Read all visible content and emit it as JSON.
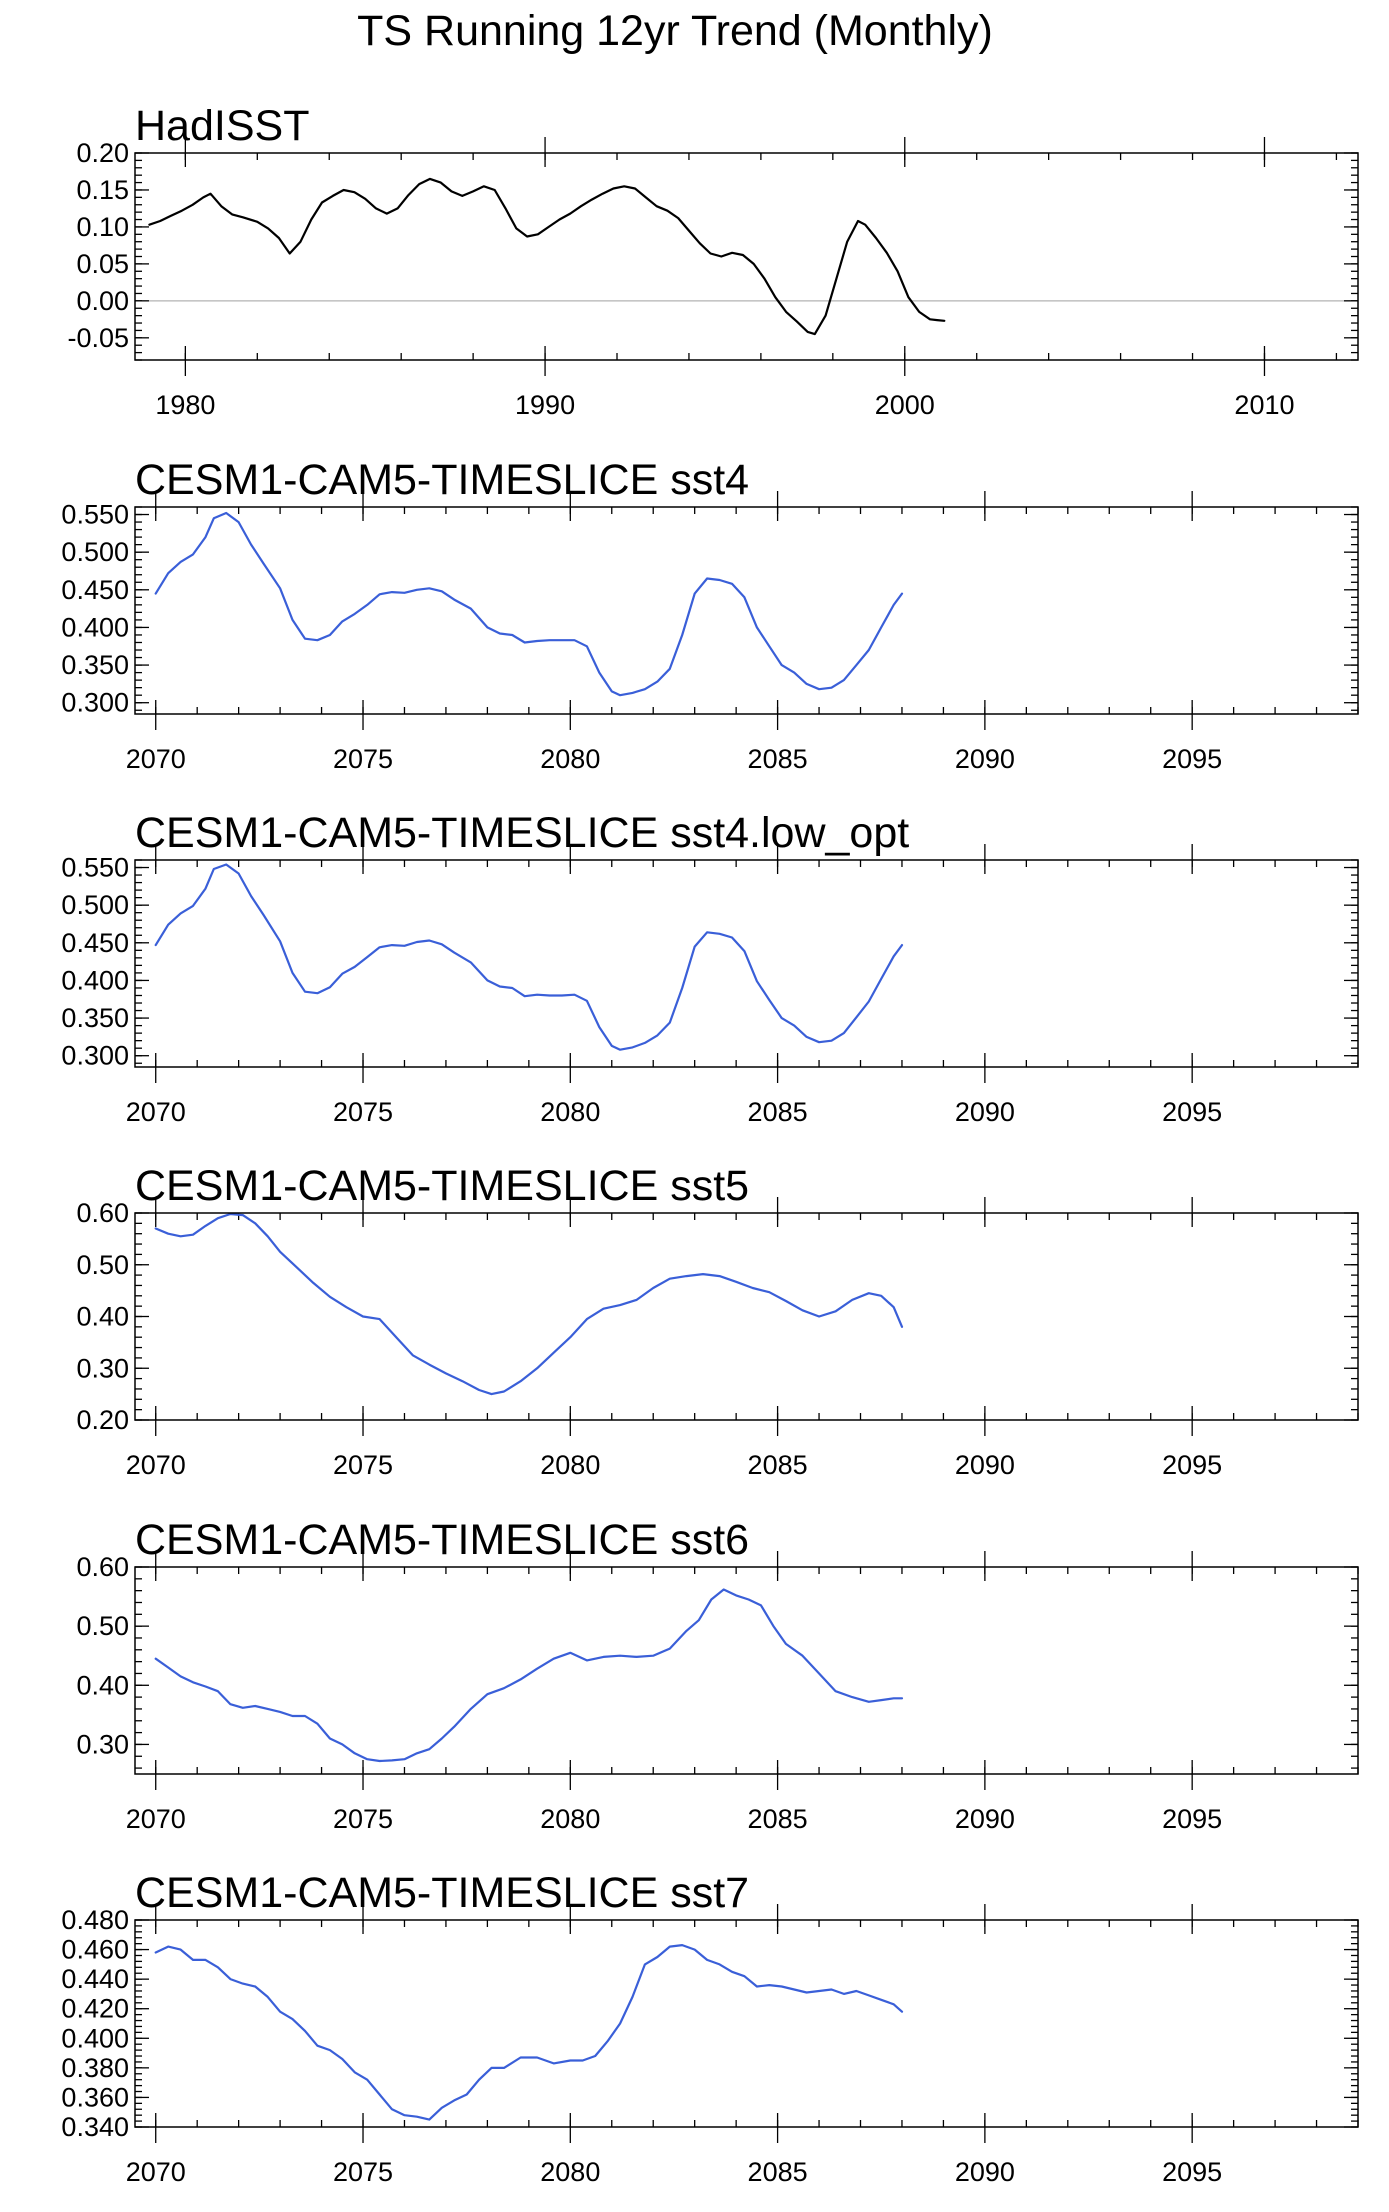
{
  "figure_title": "TS Running 12yr Trend (Monthly)",
  "chart_data": [
    {
      "type": "line",
      "title": "HadISST",
      "xlabel": "",
      "ylabel": "",
      "xlim": [
        1978.6,
        2012.6
      ],
      "ylim": [
        -0.08,
        0.2
      ],
      "yticks": [
        -0.05,
        0.0,
        0.05,
        0.1,
        0.15,
        0.2
      ],
      "ytick_labels": [
        "-0.05",
        "0.00",
        "0.05",
        "0.10",
        "0.15",
        "0.20"
      ],
      "xticks": [
        1980,
        1990,
        2000,
        2010
      ],
      "xtick_labels": [
        "1980",
        "1990",
        "2000",
        "2010"
      ],
      "zero_line": true,
      "series": [
        {
          "name": "HadISST",
          "color": "#000000",
          "x": [
            1979.0,
            1979.3,
            1979.6,
            1979.9,
            1980.2,
            1980.5,
            1980.7,
            1981.0,
            1981.3,
            1981.6,
            1982.0,
            1982.3,
            1982.6,
            1982.9,
            1983.2,
            1983.5,
            1983.8,
            1984.1,
            1984.4,
            1984.7,
            1985.0,
            1985.3,
            1985.6,
            1985.9,
            1986.2,
            1986.5,
            1986.8,
            1987.1,
            1987.4,
            1987.7,
            1988.0,
            1988.3,
            1988.6,
            1988.9,
            1989.2,
            1989.5,
            1989.8,
            1990.1,
            1990.4,
            1990.7,
            1991.0,
            1991.3,
            1991.6,
            1991.9,
            1992.2,
            1992.5,
            1992.8,
            1993.1,
            1993.4,
            1993.7,
            1994.0,
            1994.3,
            1994.6,
            1994.9,
            1995.2,
            1995.5,
            1995.8,
            1996.1,
            1996.4,
            1996.7,
            1997.0,
            1997.3,
            1997.5,
            1997.8,
            1998.1,
            1998.4,
            1998.7,
            1998.9,
            1999.2,
            1999.5,
            1999.8,
            2000.1,
            2000.4,
            2000.7,
            2000.9,
            2001.1
          ],
          "y": [
            0.103,
            0.108,
            0.115,
            0.122,
            0.13,
            0.14,
            0.145,
            0.128,
            0.117,
            0.113,
            0.107,
            0.098,
            0.085,
            0.064,
            0.08,
            0.11,
            0.133,
            0.142,
            0.15,
            0.147,
            0.138,
            0.125,
            0.118,
            0.125,
            0.143,
            0.158,
            0.165,
            0.16,
            0.148,
            0.142,
            0.148,
            0.155,
            0.15,
            0.125,
            0.098,
            0.087,
            0.09,
            0.1,
            0.11,
            0.118,
            0.128,
            0.137,
            0.145,
            0.152,
            0.155,
            0.152,
            0.14,
            0.128,
            0.122,
            0.112,
            0.095,
            0.078,
            0.064,
            0.06,
            0.065,
            0.062,
            0.05,
            0.03,
            0.005,
            -0.015,
            -0.028,
            -0.042,
            -0.045,
            -0.02,
            0.03,
            0.08,
            0.108,
            0.103,
            0.085,
            0.065,
            0.04,
            0.005,
            -0.015,
            -0.025,
            -0.026,
            -0.027
          ]
        }
      ]
    },
    {
      "type": "line",
      "title": "CESM1-CAM5-TIMESLICE sst4",
      "xlabel": "",
      "ylabel": "",
      "xlim": [
        2069.5,
        2099.0
      ],
      "ylim": [
        0.285,
        0.56
      ],
      "yticks": [
        0.3,
        0.35,
        0.4,
        0.45,
        0.5,
        0.55
      ],
      "ytick_labels": [
        "0.300",
        "0.350",
        "0.400",
        "0.450",
        "0.500",
        "0.550"
      ],
      "xticks": [
        2070,
        2075,
        2080,
        2085,
        2090,
        2095
      ],
      "xtick_labels": [
        "2070",
        "2075",
        "2080",
        "2085",
        "2090",
        "2095"
      ],
      "series": [
        {
          "name": "sst4",
          "color": "#3a5fd8",
          "x": [
            2070.0,
            2070.3,
            2070.6,
            2070.9,
            2071.2,
            2071.4,
            2071.7,
            2072.0,
            2072.3,
            2072.6,
            2073.0,
            2073.3,
            2073.6,
            2073.9,
            2074.2,
            2074.5,
            2074.8,
            2075.1,
            2075.4,
            2075.7,
            2076.0,
            2076.3,
            2076.6,
            2076.9,
            2077.2,
            2077.6,
            2078.0,
            2078.3,
            2078.6,
            2078.9,
            2079.2,
            2079.5,
            2079.8,
            2080.1,
            2080.4,
            2080.7,
            2081.0,
            2081.2,
            2081.5,
            2081.8,
            2082.1,
            2082.4,
            2082.7,
            2083.0,
            2083.3,
            2083.6,
            2083.9,
            2084.2,
            2084.5,
            2084.8,
            2085.1,
            2085.4,
            2085.7,
            2086.0,
            2086.3,
            2086.6,
            2086.9,
            2087.2,
            2087.5,
            2087.8,
            2088.0
          ],
          "y": [
            0.445,
            0.472,
            0.487,
            0.497,
            0.52,
            0.545,
            0.552,
            0.54,
            0.51,
            0.485,
            0.452,
            0.41,
            0.385,
            0.383,
            0.39,
            0.408,
            0.418,
            0.43,
            0.444,
            0.447,
            0.446,
            0.45,
            0.452,
            0.448,
            0.437,
            0.425,
            0.4,
            0.392,
            0.39,
            0.38,
            0.382,
            0.383,
            0.383,
            0.383,
            0.375,
            0.34,
            0.315,
            0.31,
            0.313,
            0.318,
            0.328,
            0.345,
            0.39,
            0.445,
            0.465,
            0.463,
            0.458,
            0.44,
            0.4,
            0.375,
            0.35,
            0.34,
            0.325,
            0.318,
            0.32,
            0.33,
            0.35,
            0.37,
            0.4,
            0.43,
            0.445
          ]
        }
      ]
    },
    {
      "type": "line",
      "title": "CESM1-CAM5-TIMESLICE sst4.low_opt",
      "xlabel": "",
      "ylabel": "",
      "xlim": [
        2069.5,
        2099.0
      ],
      "ylim": [
        0.285,
        0.56
      ],
      "yticks": [
        0.3,
        0.35,
        0.4,
        0.45,
        0.5,
        0.55
      ],
      "ytick_labels": [
        "0.300",
        "0.350",
        "0.400",
        "0.450",
        "0.500",
        "0.550"
      ],
      "xticks": [
        2070,
        2075,
        2080,
        2085,
        2090,
        2095
      ],
      "xtick_labels": [
        "2070",
        "2075",
        "2080",
        "2085",
        "2090",
        "2095"
      ],
      "series": [
        {
          "name": "sst4.low_opt",
          "color": "#3a5fd8",
          "x": [
            2070.0,
            2070.3,
            2070.6,
            2070.9,
            2071.2,
            2071.4,
            2071.7,
            2072.0,
            2072.3,
            2072.6,
            2073.0,
            2073.3,
            2073.6,
            2073.9,
            2074.2,
            2074.5,
            2074.8,
            2075.1,
            2075.4,
            2075.7,
            2076.0,
            2076.3,
            2076.6,
            2076.9,
            2077.2,
            2077.6,
            2078.0,
            2078.3,
            2078.6,
            2078.9,
            2079.2,
            2079.5,
            2079.8,
            2080.1,
            2080.4,
            2080.7,
            2081.0,
            2081.2,
            2081.5,
            2081.8,
            2082.1,
            2082.4,
            2082.7,
            2083.0,
            2083.3,
            2083.6,
            2083.9,
            2084.2,
            2084.5,
            2084.8,
            2085.1,
            2085.4,
            2085.7,
            2086.0,
            2086.3,
            2086.6,
            2086.9,
            2087.2,
            2087.5,
            2087.8,
            2088.0
          ],
          "y": [
            0.447,
            0.474,
            0.489,
            0.499,
            0.522,
            0.548,
            0.554,
            0.542,
            0.512,
            0.487,
            0.452,
            0.41,
            0.385,
            0.383,
            0.391,
            0.409,
            0.418,
            0.431,
            0.444,
            0.447,
            0.446,
            0.451,
            0.453,
            0.448,
            0.437,
            0.424,
            0.4,
            0.392,
            0.39,
            0.379,
            0.381,
            0.38,
            0.38,
            0.381,
            0.373,
            0.338,
            0.313,
            0.308,
            0.311,
            0.317,
            0.327,
            0.344,
            0.39,
            0.445,
            0.464,
            0.462,
            0.457,
            0.439,
            0.399,
            0.374,
            0.35,
            0.34,
            0.325,
            0.318,
            0.32,
            0.33,
            0.351,
            0.372,
            0.402,
            0.432,
            0.447
          ]
        }
      ]
    },
    {
      "type": "line",
      "title": "CESM1-CAM5-TIMESLICE sst5",
      "xlabel": "",
      "ylabel": "",
      "xlim": [
        2069.5,
        2099.0
      ],
      "ylim": [
        0.2,
        0.6
      ],
      "yticks": [
        0.2,
        0.3,
        0.4,
        0.5,
        0.6
      ],
      "ytick_labels": [
        "0.20",
        "0.30",
        "0.40",
        "0.50",
        "0.60"
      ],
      "xticks": [
        2070,
        2075,
        2080,
        2085,
        2090,
        2095
      ],
      "xtick_labels": [
        "2070",
        "2075",
        "2080",
        "2085",
        "2090",
        "2095"
      ],
      "series": [
        {
          "name": "sst5",
          "color": "#3a5fd8",
          "x": [
            2070.0,
            2070.3,
            2070.6,
            2070.9,
            2071.2,
            2071.5,
            2071.8,
            2072.1,
            2072.4,
            2072.7,
            2073.0,
            2073.4,
            2073.8,
            2074.2,
            2074.6,
            2075.0,
            2075.4,
            2075.8,
            2076.2,
            2076.6,
            2077.0,
            2077.4,
            2077.8,
            2078.1,
            2078.4,
            2078.8,
            2079.2,
            2079.6,
            2080.0,
            2080.4,
            2080.8,
            2081.2,
            2081.6,
            2082.0,
            2082.4,
            2082.8,
            2083.2,
            2083.6,
            2084.0,
            2084.4,
            2084.8,
            2085.2,
            2085.6,
            2086.0,
            2086.4,
            2086.8,
            2087.2,
            2087.5,
            2087.8,
            2088.0
          ],
          "y": [
            0.57,
            0.56,
            0.555,
            0.558,
            0.575,
            0.59,
            0.598,
            0.596,
            0.58,
            0.555,
            0.525,
            0.495,
            0.465,
            0.438,
            0.418,
            0.4,
            0.395,
            0.36,
            0.325,
            0.307,
            0.29,
            0.275,
            0.258,
            0.25,
            0.255,
            0.275,
            0.3,
            0.33,
            0.36,
            0.395,
            0.415,
            0.422,
            0.432,
            0.455,
            0.473,
            0.478,
            0.482,
            0.478,
            0.467,
            0.455,
            0.447,
            0.43,
            0.412,
            0.4,
            0.41,
            0.432,
            0.445,
            0.44,
            0.418,
            0.38
          ]
        }
      ]
    },
    {
      "type": "line",
      "title": "CESM1-CAM5-TIMESLICE sst6",
      "xlabel": "",
      "ylabel": "",
      "xlim": [
        2069.5,
        2099.0
      ],
      "ylim": [
        0.25,
        0.6
      ],
      "yticks": [
        0.3,
        0.4,
        0.5,
        0.6
      ],
      "ytick_labels": [
        "0.30",
        "0.40",
        "0.50",
        "0.60"
      ],
      "xticks": [
        2070,
        2075,
        2080,
        2085,
        2090,
        2095
      ],
      "xtick_labels": [
        "2070",
        "2075",
        "2080",
        "2085",
        "2090",
        "2095"
      ],
      "series": [
        {
          "name": "sst6",
          "color": "#3a5fd8",
          "x": [
            2070.0,
            2070.3,
            2070.6,
            2070.9,
            2071.2,
            2071.5,
            2071.8,
            2072.1,
            2072.4,
            2072.7,
            2073.0,
            2073.3,
            2073.6,
            2073.9,
            2074.2,
            2074.5,
            2074.8,
            2075.1,
            2075.4,
            2075.7,
            2076.0,
            2076.3,
            2076.6,
            2076.9,
            2077.2,
            2077.6,
            2078.0,
            2078.4,
            2078.8,
            2079.2,
            2079.6,
            2080.0,
            2080.4,
            2080.8,
            2081.2,
            2081.6,
            2082.0,
            2082.4,
            2082.8,
            2083.1,
            2083.4,
            2083.7,
            2084.0,
            2084.3,
            2084.6,
            2084.9,
            2085.2,
            2085.6,
            2086.0,
            2086.4,
            2086.8,
            2087.2,
            2087.5,
            2087.8,
            2088.0
          ],
          "y": [
            0.445,
            0.43,
            0.415,
            0.405,
            0.398,
            0.39,
            0.368,
            0.362,
            0.365,
            0.36,
            0.355,
            0.348,
            0.348,
            0.335,
            0.31,
            0.3,
            0.285,
            0.275,
            0.272,
            0.273,
            0.275,
            0.285,
            0.292,
            0.31,
            0.33,
            0.36,
            0.385,
            0.395,
            0.41,
            0.428,
            0.445,
            0.455,
            0.442,
            0.448,
            0.45,
            0.448,
            0.45,
            0.462,
            0.492,
            0.51,
            0.545,
            0.562,
            0.552,
            0.545,
            0.535,
            0.5,
            0.47,
            0.45,
            0.42,
            0.39,
            0.38,
            0.372,
            0.375,
            0.378,
            0.378
          ]
        }
      ]
    },
    {
      "type": "line",
      "title": "CESM1-CAM5-TIMESLICE sst7",
      "xlabel": "",
      "ylabel": "",
      "xlim": [
        2069.5,
        2099.0
      ],
      "ylim": [
        0.34,
        0.48
      ],
      "yticks": [
        0.34,
        0.36,
        0.38,
        0.4,
        0.42,
        0.44,
        0.46,
        0.48
      ],
      "ytick_labels": [
        "0.340",
        "0.360",
        "0.380",
        "0.400",
        "0.420",
        "0.440",
        "0.460",
        "0.480"
      ],
      "xticks": [
        2070,
        2075,
        2080,
        2085,
        2090,
        2095
      ],
      "xtick_labels": [
        "2070",
        "2075",
        "2080",
        "2085",
        "2090",
        "2095"
      ],
      "series": [
        {
          "name": "sst7",
          "color": "#3a5fd8",
          "x": [
            2070.0,
            2070.3,
            2070.6,
            2070.9,
            2071.2,
            2071.5,
            2071.8,
            2072.1,
            2072.4,
            2072.7,
            2073.0,
            2073.3,
            2073.6,
            2073.9,
            2074.2,
            2074.5,
            2074.8,
            2075.1,
            2075.4,
            2075.7,
            2076.0,
            2076.3,
            2076.6,
            2076.9,
            2077.2,
            2077.5,
            2077.8,
            2078.1,
            2078.4,
            2078.8,
            2079.2,
            2079.6,
            2080.0,
            2080.3,
            2080.6,
            2080.9,
            2081.2,
            2081.5,
            2081.8,
            2082.1,
            2082.4,
            2082.7,
            2083.0,
            2083.3,
            2083.6,
            2083.9,
            2084.2,
            2084.5,
            2084.8,
            2085.1,
            2085.4,
            2085.7,
            2086.0,
            2086.3,
            2086.6,
            2086.9,
            2087.2,
            2087.5,
            2087.8,
            2088.0
          ],
          "y": [
            0.458,
            0.462,
            0.46,
            0.453,
            0.453,
            0.448,
            0.44,
            0.437,
            0.435,
            0.428,
            0.418,
            0.413,
            0.405,
            0.395,
            0.392,
            0.386,
            0.377,
            0.372,
            0.362,
            0.352,
            0.348,
            0.347,
            0.345,
            0.353,
            0.358,
            0.362,
            0.372,
            0.38,
            0.38,
            0.387,
            0.387,
            0.383,
            0.385,
            0.385,
            0.388,
            0.398,
            0.41,
            0.428,
            0.45,
            0.455,
            0.462,
            0.463,
            0.46,
            0.453,
            0.45,
            0.445,
            0.442,
            0.435,
            0.436,
            0.435,
            0.433,
            0.431,
            0.432,
            0.433,
            0.43,
            0.432,
            0.429,
            0.426,
            0.423,
            0.418
          ]
        }
      ]
    }
  ]
}
